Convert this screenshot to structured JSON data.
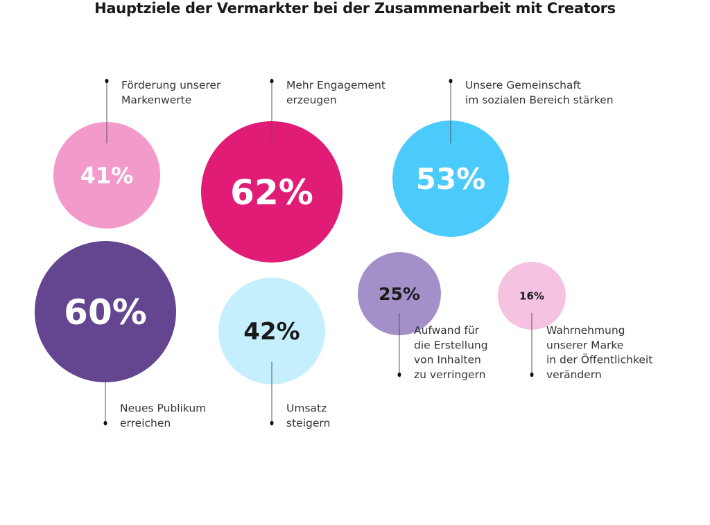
{
  "chart_data": {
    "type": "bubble",
    "title": "Hauptziele der Vermarkter bei der Zusammenarbeit mit Creators",
    "unit": "%",
    "bubbles": [
      {
        "value": 41,
        "display": "41%",
        "label": [
          "Förderung unserer",
          "Markenwerte"
        ],
        "color": "#f29bcb",
        "text_color": "#ffffff"
      },
      {
        "value": 62,
        "display": "62%",
        "label": [
          "Mehr Engagement",
          "erzeugen"
        ],
        "color": "#e01c77",
        "text_color": "#ffffff"
      },
      {
        "value": 53,
        "display": "53%",
        "label": [
          "Unsere Gemeinschaft",
          "im sozialen Bereich stärken"
        ],
        "color": "#4bcbfb",
        "text_color": "#ffffff"
      },
      {
        "value": 60,
        "display": "60%",
        "label": [
          "Neues Publikum",
          "erreichen"
        ],
        "color": "#644690",
        "text_color": "#ffffff"
      },
      {
        "value": 42,
        "display": "42%",
        "label": [
          "Umsatz",
          "steigern"
        ],
        "color": "#c6effd",
        "text_color": "#1a1a1a"
      },
      {
        "value": 25,
        "display": "25%",
        "label": [
          "Aufwand für",
          "die Erstellung",
          "von Inhalten",
          "zu verringern"
        ],
        "color": "#a490c9",
        "text_color": "#1a1a1a"
      },
      {
        "value": 16,
        "display": "16%",
        "label": [
          "Wahrnehmung",
          "unserer Marke",
          "in der Öffentlichkeit",
          "verändern"
        ],
        "color": "#f6c2e2",
        "text_color": "#1a1a1a"
      }
    ]
  }
}
